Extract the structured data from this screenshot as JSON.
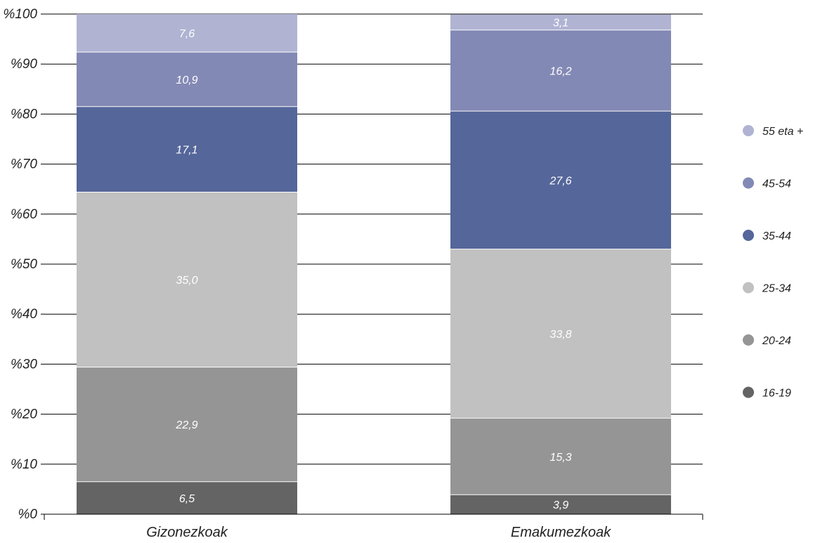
{
  "chart_data": {
    "type": "bar",
    "stacked": true,
    "categories": [
      "Gizonezkoak",
      "Emakumezkoak"
    ],
    "series": [
      {
        "name": "16-19",
        "values": [
          6.5,
          3.9
        ],
        "color": "#646464"
      },
      {
        "name": "20-24",
        "values": [
          22.9,
          15.3
        ],
        "color": "#959595"
      },
      {
        "name": "25-34",
        "values": [
          35.0,
          33.8
        ],
        "color": "#c1c1c1"
      },
      {
        "name": "35-44",
        "values": [
          17.1,
          27.6
        ],
        "color": "#55669a"
      },
      {
        "name": "45-54",
        "values": [
          10.9,
          16.2
        ],
        "color": "#8389b5"
      },
      {
        "name": "55 eta +",
        "values": [
          7.6,
          3.1
        ],
        "color": "#b0b3d2"
      }
    ],
    "value_labels": [
      [
        "6,5",
        "3,9"
      ],
      [
        "22,9",
        "15,3"
      ],
      [
        "35,0",
        "33,8"
      ],
      [
        "17,1",
        "27,6"
      ],
      [
        "10,9",
        "16,2"
      ],
      [
        "7,6",
        "3,1"
      ]
    ],
    "ylim": [
      0,
      100
    ],
    "yticks": [
      0,
      10,
      20,
      30,
      40,
      50,
      60,
      70,
      80,
      90,
      100
    ],
    "ytick_labels": [
      "%0",
      "%10",
      "%20",
      "%30",
      "%40",
      "%50",
      "%60",
      "%70",
      "%80",
      "%90",
      "%100"
    ],
    "grid": true,
    "legend_position": "right",
    "legend_order": [
      "55 eta +",
      "45-54",
      "35-44",
      "25-34",
      "20-24",
      "16-19"
    ],
    "title": "",
    "xlabel": "",
    "ylabel": ""
  }
}
